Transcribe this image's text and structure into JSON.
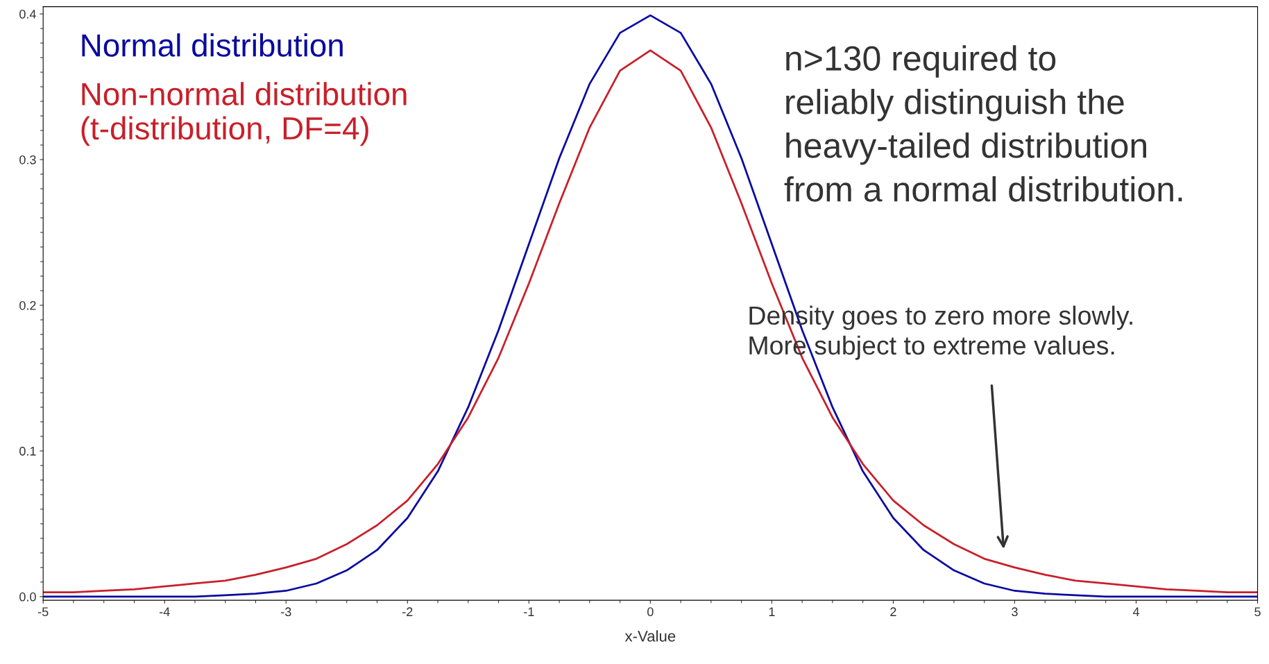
{
  "chart_data": {
    "type": "line",
    "xlabel": "x-Value",
    "x": [
      -5,
      -4.75,
      -4.5,
      -4.25,
      -4,
      -3.75,
      -3.5,
      -3.25,
      -3,
      -2.75,
      -2.5,
      -2.25,
      -2,
      -1.75,
      -1.5,
      -1.25,
      -1,
      -0.75,
      -0.5,
      -0.25,
      0,
      0.25,
      0.5,
      0.75,
      1,
      1.25,
      1.5,
      1.75,
      2,
      2.25,
      2.5,
      2.75,
      3,
      3.25,
      3.5,
      3.75,
      4,
      4.25,
      4.5,
      4.75,
      5
    ],
    "series": [
      {
        "name": "Normal distribution",
        "color": "#0a0aa0",
        "values": [
          0,
          0,
          0,
          0,
          0,
          0,
          0.001,
          0.002,
          0.004,
          0.009,
          0.018,
          0.032,
          0.054,
          0.086,
          0.13,
          0.183,
          0.242,
          0.301,
          0.352,
          0.387,
          0.399,
          0.387,
          0.352,
          0.301,
          0.242,
          0.183,
          0.13,
          0.086,
          0.054,
          0.032,
          0.018,
          0.009,
          0.004,
          0.002,
          0.001,
          0,
          0,
          0,
          0,
          0,
          0
        ]
      },
      {
        "name": "Non-normal distribution\n(t-distribution, DF=4)",
        "color": "#c8202a",
        "values": [
          0.003,
          0.003,
          0.004,
          0.005,
          0.007,
          0.009,
          0.011,
          0.015,
          0.02,
          0.026,
          0.036,
          0.049,
          0.066,
          0.091,
          0.123,
          0.164,
          0.215,
          0.27,
          0.322,
          0.361,
          0.375,
          0.361,
          0.322,
          0.27,
          0.215,
          0.164,
          0.123,
          0.091,
          0.066,
          0.049,
          0.036,
          0.026,
          0.02,
          0.015,
          0.011,
          0.009,
          0.007,
          0.005,
          0.004,
          0.003,
          0.003
        ]
      }
    ],
    "xlim": [
      -5,
      5
    ],
    "xticks": [
      -5,
      -4,
      -3,
      -2,
      -1,
      0,
      1,
      2,
      3,
      4,
      5
    ],
    "ylim": [
      -0.0025,
      0.405
    ],
    "yticks": [
      {
        "value": 0,
        "label": "0.0"
      },
      0.1,
      0.2,
      0.3,
      0.4
    ],
    "grid": false,
    "marker": "none",
    "line_style": "solid",
    "annotations": [
      "n>130 required to\nreliably distinguish the\nheavy-tailed distribution\nfrom a normal distribution.",
      "Density goes to zero more slowly.\nMore subject to extreme values."
    ]
  }
}
